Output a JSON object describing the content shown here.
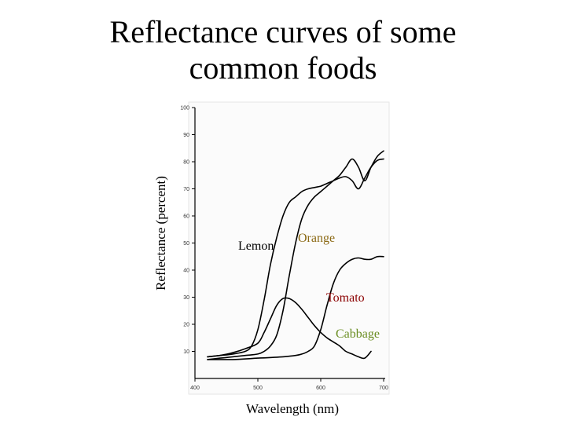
{
  "slide": {
    "title_line1": "Reflectance curves of some",
    "title_line2": "common foods"
  },
  "chart_data": {
    "type": "line",
    "title": "Reflectance curves of some common foods",
    "xlabel": "Wavelength (nm)",
    "ylabel": "Reflectance (percent)",
    "xlim": [
      400,
      700
    ],
    "ylim": [
      0,
      100
    ],
    "x_ticks": [
      400,
      500,
      600,
      700
    ],
    "y_ticks": [
      10,
      20,
      30,
      40,
      50,
      60,
      70,
      80,
      90,
      100
    ],
    "grid": false,
    "series": [
      {
        "name": "Lemon",
        "color": "#000000",
        "label_color": "#000000",
        "x": [
          420,
          440,
          460,
          480,
          490,
          500,
          510,
          520,
          530,
          540,
          550,
          560,
          570,
          580,
          590,
          600,
          610,
          620,
          630,
          640,
          650,
          660,
          670,
          680,
          690,
          700
        ],
        "y": [
          8,
          8.5,
          9,
          10,
          12,
          18,
          29,
          42,
          52,
          60,
          65,
          67,
          69,
          70,
          70.5,
          71,
          72,
          73,
          74,
          74.5,
          73,
          70,
          74,
          78,
          80.5,
          81
        ]
      },
      {
        "name": "Orange",
        "color": "#000000",
        "label_color": "#8B6914",
        "x": [
          420,
          440,
          460,
          480,
          500,
          510,
          520,
          530,
          540,
          550,
          560,
          570,
          580,
          590,
          600,
          610,
          620,
          630,
          640,
          650,
          660,
          670,
          680,
          690,
          700
        ],
        "y": [
          7,
          7.5,
          8,
          8.5,
          9,
          10,
          12,
          16,
          25,
          38,
          50,
          59,
          64,
          67,
          69,
          71,
          73,
          75,
          78,
          81,
          78,
          73,
          78,
          82,
          84
        ]
      },
      {
        "name": "Tomato",
        "color": "#000000",
        "label_color": "#8B0000",
        "x": [
          420,
          460,
          500,
          540,
          560,
          570,
          580,
          590,
          600,
          610,
          620,
          630,
          640,
          650,
          660,
          670,
          680,
          690,
          700
        ],
        "y": [
          7,
          7,
          7.5,
          8,
          8.5,
          9,
          10,
          12,
          18,
          27,
          35,
          40,
          42.5,
          44,
          44.5,
          44,
          44,
          45,
          45
        ]
      },
      {
        "name": "Cabbage",
        "color": "#000000",
        "label_color": "#6B8E23",
        "x": [
          420,
          440,
          460,
          480,
          500,
          510,
          520,
          530,
          540,
          550,
          560,
          570,
          580,
          590,
          600,
          610,
          620,
          630,
          640,
          650,
          660,
          670,
          680
        ],
        "y": [
          8,
          8.5,
          9.5,
          11,
          13,
          17,
          22,
          27,
          29.5,
          29.5,
          28,
          25.5,
          22.5,
          19.5,
          17,
          15,
          13.5,
          12,
          10,
          9,
          8,
          7.5,
          10
        ]
      }
    ]
  }
}
